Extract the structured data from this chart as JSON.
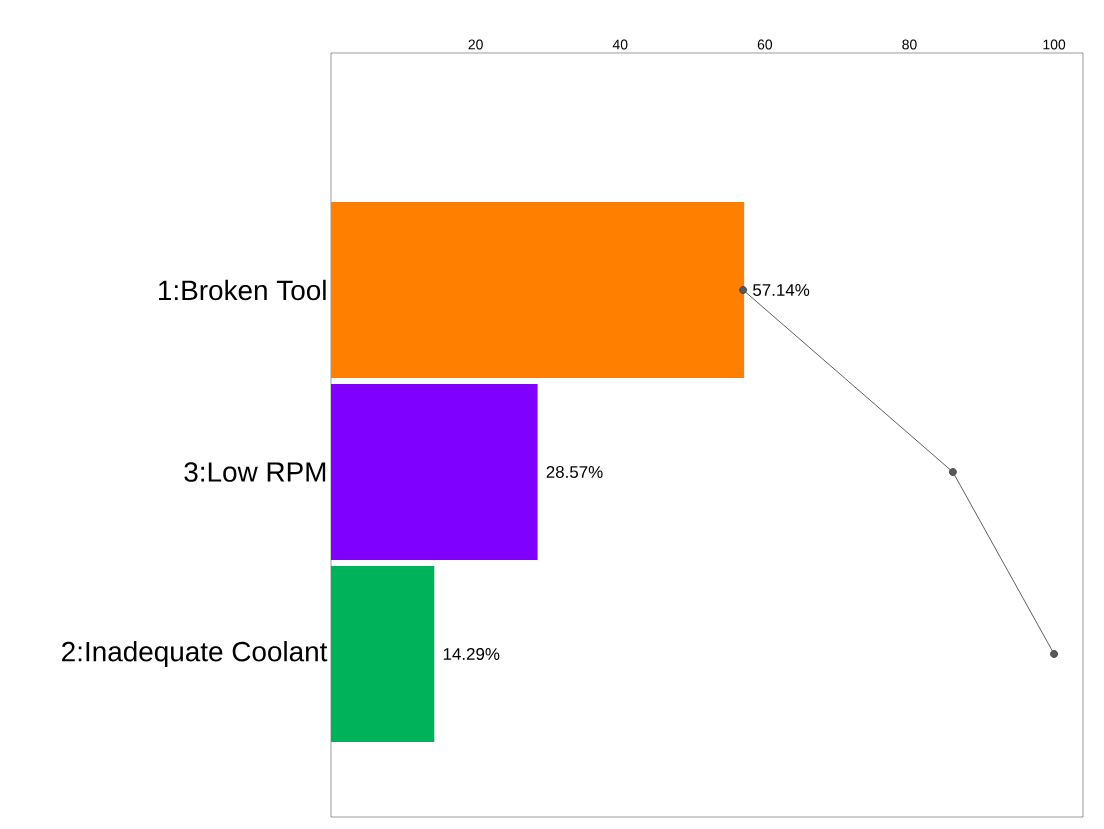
{
  "chart_data": {
    "type": "bar",
    "orientation": "horizontal",
    "categories": [
      "1:Broken Tool",
      "3:Low RPM",
      "2:Inadequate Coolant"
    ],
    "xlim": [
      0,
      104
    ],
    "xticks": [
      20,
      40,
      60,
      80,
      100
    ],
    "series": [
      {
        "colors": [
          "#ff7f00",
          "#7f00ff",
          "#00b259"
        ],
        "values": [
          57.14,
          28.57,
          14.29
        ],
        "value_labels": [
          "57.14%",
          "28.57%",
          "14.29%"
        ]
      },
      {
        "type": "line",
        "color": "#333333",
        "marker": "circle",
        "values": [
          57,
          86,
          100
        ]
      }
    ]
  }
}
